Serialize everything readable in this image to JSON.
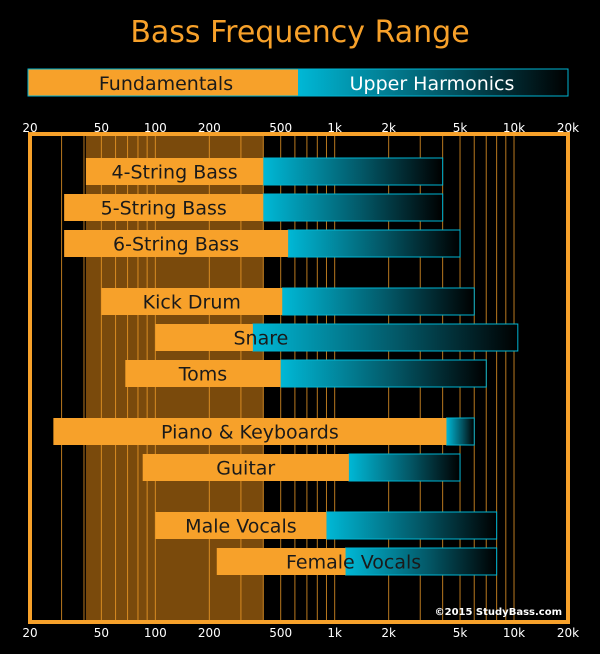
{
  "chart_data": {
    "type": "bar",
    "title": "Bass Frequency Range",
    "legend": {
      "fundamentals": "Fundamentals",
      "upper_harmonics": "Upper Harmonics"
    },
    "x_scale": "log",
    "x_range": [
      20,
      20000
    ],
    "x_tick_values": [
      20,
      50,
      100,
      200,
      500,
      1000,
      2000,
      5000,
      10000,
      20000
    ],
    "x_tick_labels": [
      "20",
      "50",
      "100",
      "200",
      "500",
      "1k",
      "2k",
      "5k",
      "10k",
      "20k"
    ],
    "highlight_band": [
      41,
      400
    ],
    "series": [
      {
        "name": "Fundamentals",
        "values": [
          [
            41,
            400
          ],
          [
            31,
            400
          ],
          [
            31,
            550
          ],
          [
            50,
            510
          ],
          [
            100,
            350
          ],
          [
            68,
            500
          ],
          [
            27,
            4200
          ],
          [
            85,
            1200
          ],
          [
            100,
            900
          ],
          [
            220,
            1150
          ]
        ]
      },
      {
        "name": "Upper Harmonics",
        "values": [
          [
            400,
            4000
          ],
          [
            400,
            4000
          ],
          [
            550,
            5000
          ],
          [
            510,
            6000
          ],
          [
            350,
            10500
          ],
          [
            500,
            7000
          ],
          [
            4200,
            6000
          ],
          [
            1200,
            5000
          ],
          [
            900,
            8000
          ],
          [
            1150,
            8000
          ]
        ]
      }
    ],
    "instruments": [
      {
        "label": "4-String Bass",
        "group": 0
      },
      {
        "label": "5-String Bass",
        "group": 0
      },
      {
        "label": "6-String Bass",
        "group": 0
      },
      {
        "label": "Kick Drum",
        "group": 1
      },
      {
        "label": "Snare",
        "group": 1
      },
      {
        "label": "Toms",
        "group": 1
      },
      {
        "label": "Piano & Keyboards",
        "group": 2
      },
      {
        "label": "Guitar",
        "group": 2
      },
      {
        "label": "Male Vocals",
        "group": 3
      },
      {
        "label": "Female Vocals",
        "group": 3
      }
    ],
    "credit": "©2015 StudyBass.com",
    "colors": {
      "fundamentals": "#f7a12a",
      "harmonics": "#00b4d2",
      "frame": "#f7a12a",
      "band": "#7a4a0c",
      "title": "#f7a12a",
      "text": "#1a1a1a",
      "tick_text": "#ffffff"
    }
  }
}
